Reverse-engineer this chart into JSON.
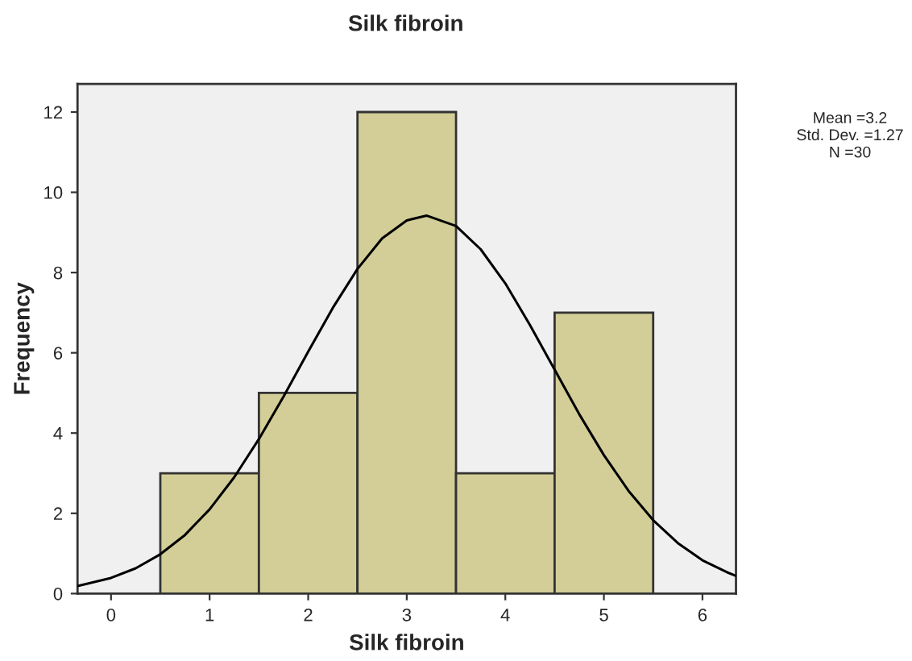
{
  "chart_data": {
    "type": "histogram",
    "title": "Silk fibroin",
    "xlabel": "Silk fibroin",
    "ylabel": "Frequency",
    "bins": [
      0.5,
      1.5,
      2.5,
      3.5,
      4.5,
      5.5
    ],
    "values": [
      3,
      5,
      12,
      3,
      7
    ],
    "color": "#d3ce97",
    "series": [
      {
        "type": "line",
        "color": "#000000",
        "x": [
          -0.34,
          0,
          0.25,
          0.5,
          0.75,
          1,
          1.25,
          1.5,
          1.75,
          2,
          2.25,
          2.5,
          2.75,
          3,
          3.2,
          3.5,
          3.75,
          4,
          4.25,
          4.5,
          4.75,
          5,
          5.25,
          5.5,
          5.75,
          6,
          6.25,
          6.34
        ],
        "values": [
          0.19,
          0.39,
          0.63,
          0.98,
          1.46,
          2.1,
          2.9,
          3.85,
          4.91,
          6.03,
          7.12,
          8.09,
          8.85,
          9.3,
          9.42,
          9.16,
          8.58,
          7.73,
          6.69,
          5.58,
          4.47,
          3.45,
          2.56,
          1.83,
          1.26,
          0.83,
          0.53,
          0.44
        ]
      }
    ],
    "xlim": [
      -0.34,
      6.34
    ],
    "xticks": [
      0,
      1,
      2,
      3,
      4,
      5,
      6
    ],
    "ylim": [
      0,
      12.7
    ],
    "yticks": [
      0,
      2,
      4,
      6,
      8,
      10,
      12
    ],
    "grid": false,
    "legend": false,
    "annotations": [
      "Mean =3.2",
      "Std. Dev. =1.27",
      "N =30"
    ]
  }
}
